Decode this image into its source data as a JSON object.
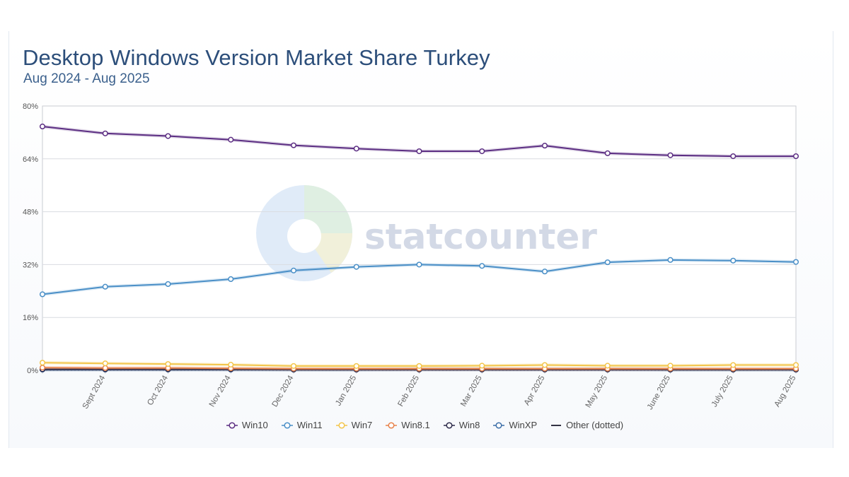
{
  "chart_data": {
    "type": "line",
    "title": "Desktop Windows Version Market Share Turkey",
    "subtitle": "Aug 2024 - Aug 2025",
    "watermark": "statcounter",
    "categories": [
      "",
      "Sept 2024",
      "Oct 2024",
      "Nov 2024",
      "Dec 2024",
      "Jan 2025",
      "Feb 2025",
      "Mar 2025",
      "Apr 2025",
      "May 2025",
      "June 2025",
      "July 2025",
      "Aug 2025"
    ],
    "ylim": [
      0,
      80
    ],
    "yticks": [
      "0%",
      "16%",
      "32%",
      "48%",
      "64%",
      "80%"
    ],
    "grid": true,
    "legend_position": "bottom",
    "series": [
      {
        "name": "Win10",
        "color": "#5b2d82",
        "values": [
          73.8,
          71.7,
          70.9,
          69.8,
          68.1,
          67.1,
          66.3,
          66.3,
          68.0,
          65.7,
          65.1,
          64.8,
          64.8
        ]
      },
      {
        "name": "Win11",
        "color": "#4a8fc7",
        "values": [
          23.0,
          25.3,
          26.1,
          27.6,
          30.2,
          31.3,
          32.0,
          31.6,
          29.9,
          32.7,
          33.4,
          33.2,
          32.8
        ]
      },
      {
        "name": "Win7",
        "color": "#f3c54a",
        "values": [
          2.3,
          2.1,
          1.9,
          1.7,
          1.3,
          1.3,
          1.3,
          1.4,
          1.6,
          1.4,
          1.4,
          1.6,
          1.6
        ]
      },
      {
        "name": "Win8.1",
        "color": "#e8824a",
        "values": [
          0.8,
          0.7,
          0.7,
          0.6,
          0.5,
          0.5,
          0.5,
          0.5,
          0.5,
          0.5,
          0.5,
          0.5,
          0.5
        ]
      },
      {
        "name": "Win8",
        "color": "#2c2a4a",
        "values": [
          0.3,
          0.3,
          0.3,
          0.3,
          0.2,
          0.2,
          0.2,
          0.2,
          0.2,
          0.2,
          0.2,
          0.2,
          0.2
        ]
      },
      {
        "name": "WinXP",
        "color": "#3c6ea8",
        "values": [
          0.2,
          0.2,
          0.2,
          0.2,
          0.2,
          0.2,
          0.3,
          0.3,
          0.3,
          0.3,
          0.2,
          0.2,
          0.2
        ]
      },
      {
        "name": "Other (dotted)",
        "color": "#333344",
        "dotted": true,
        "values": [
          0.1,
          0.1,
          0.1,
          0.1,
          0.1,
          0.1,
          0.1,
          0.1,
          0.1,
          0.1,
          0.1,
          0.1,
          0.1
        ]
      }
    ]
  }
}
